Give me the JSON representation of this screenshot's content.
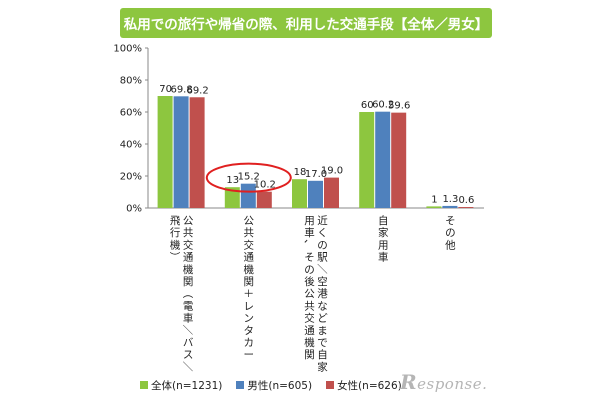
{
  "title": "私用での旅行や帰省の際、利用した交通手段【全体／男女】",
  "chart_data": {
    "type": "bar",
    "categories": [
      "公共交通機関（電車／バス／飛行機）",
      "公共交通機関＋レンタカー",
      "近くの駅／空港などまで自家用車、その後公共交通機関",
      "自家用車",
      "その他"
    ],
    "series": [
      {
        "name": "全体(n=1231)",
        "color": "#8dc63f",
        "values": [
          70,
          13,
          18,
          60,
          1
        ],
        "labels": [
          "70",
          "13",
          "18",
          "60",
          "1"
        ]
      },
      {
        "name": "男性(n=605)",
        "color": "#4f81bd",
        "values": [
          69.8,
          15.2,
          17.0,
          60.2,
          1.3
        ],
        "labels": [
          "69.8",
          "15.2",
          "17.0",
          "60.2",
          "1.3"
        ]
      },
      {
        "name": "女性(n=626)",
        "color": "#c0504d",
        "values": [
          69.2,
          10.2,
          19.0,
          59.6,
          0.6
        ],
        "labels": [
          "69.2",
          "10.2",
          "19.0",
          "59.6",
          "0.6"
        ]
      }
    ],
    "ylim": [
      0,
      100
    ],
    "yticks": [
      "0%",
      "20%",
      "40%",
      "60%",
      "80%",
      "100%"
    ],
    "annotation": {
      "type": "ellipse",
      "color": "#e02020",
      "category_index": 1
    },
    "legend": "bottom",
    "grid": false
  },
  "watermark": "Response."
}
